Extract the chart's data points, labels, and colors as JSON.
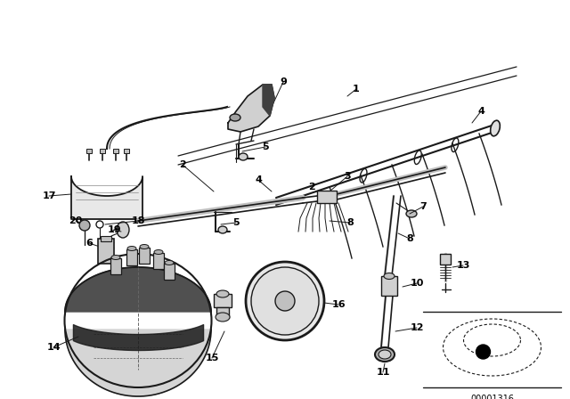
{
  "bg_color": "#ffffff",
  "line_color": "#1a1a1a",
  "diagram_code": "00001316",
  "figsize": [
    6.4,
    4.48
  ],
  "dpi": 100
}
